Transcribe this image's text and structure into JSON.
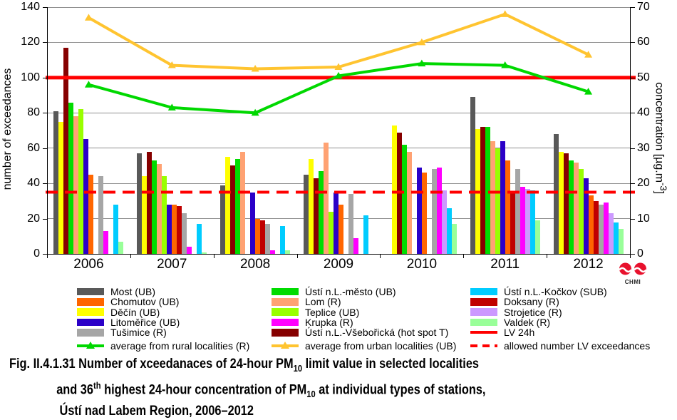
{
  "chart_data": {
    "type": "bar+line",
    "categories": [
      "2006",
      "2007",
      "2008",
      "2009",
      "2010",
      "2011",
      "2012"
    ],
    "bar_series": [
      {
        "name": "Most (UB)",
        "color": "#595959",
        "values": [
          81,
          57,
          39,
          45,
          null,
          89,
          68
        ]
      },
      {
        "name": "Děčín (UB)",
        "color": "#FFFF00",
        "values": [
          75,
          44,
          55,
          54,
          73,
          71,
          58
        ]
      },
      {
        "name": "Ústí n.L.-Všebořická (hot spot T)",
        "color": "#860000",
        "values": [
          117,
          58,
          50,
          43,
          69,
          72,
          57
        ]
      },
      {
        "name": "Ústí n.L.-město (UB)",
        "color": "#00DC00",
        "values": [
          86,
          53,
          54,
          47,
          62,
          72,
          53
        ]
      },
      {
        "name": "Lom (R)",
        "color": "#FFA273",
        "values": [
          78,
          51,
          58,
          63,
          58,
          64,
          52
        ]
      },
      {
        "name": "Teplice (UB)",
        "color": "#99FF00",
        "values": [
          82,
          44,
          null,
          24,
          null,
          60,
          48
        ]
      },
      {
        "name": "Litoměřice (UB)",
        "color": "#2B00C8",
        "values": [
          65,
          28,
          35,
          35,
          49,
          64,
          43
        ]
      },
      {
        "name": "Chomutov (UB)",
        "color": "#FF6600",
        "values": [
          45,
          28,
          20,
          28,
          46,
          53,
          33
        ]
      },
      {
        "name": "Doksany (R)",
        "color": "#C00000",
        "values": [
          null,
          27,
          19,
          null,
          null,
          35,
          30
        ]
      },
      {
        "name": "Tušimice (R)",
        "color": "#A6A6A6",
        "values": [
          44,
          23,
          17,
          34,
          48,
          48,
          28
        ]
      },
      {
        "name": "Krupka (R)",
        "color": "#FF00FF",
        "values": [
          13,
          4,
          2,
          9,
          49,
          38,
          29
        ]
      },
      {
        "name": "Strojetice (R)",
        "color": "#CC99FF",
        "values": [
          null,
          null,
          null,
          null,
          36,
          37,
          23
        ]
      },
      {
        "name": "Ústí n.L.-Kočkov (SUB)",
        "color": "#00CCFF",
        "values": [
          28,
          17,
          16,
          22,
          26,
          36,
          18
        ]
      },
      {
        "name": "Valdek (R)",
        "color": "#99FF99",
        "values": [
          7,
          1,
          2,
          null,
          17,
          19,
          14
        ]
      }
    ],
    "line_series": [
      {
        "name": "average from rural localities (R)",
        "color": "#00D800",
        "values": [
          96,
          83,
          80,
          101,
          108,
          107,
          92
        ]
      },
      {
        "name": "average from urban localities (UB)",
        "color": "#FFC430",
        "values": [
          134,
          107,
          105,
          106,
          120,
          136,
          113
        ]
      }
    ],
    "ref_lines": [
      {
        "name": "LV 24h",
        "value": 100,
        "style": "solid",
        "color": "#FF0000"
      },
      {
        "name": "allowed number LV exceedances",
        "value": 35,
        "style": "dashed",
        "color": "#FF0000"
      }
    ],
    "y_left": {
      "label": "number of exceedances",
      "min": 0,
      "max": 140,
      "ticks": [
        0,
        20,
        40,
        60,
        80,
        100,
        120,
        140
      ]
    },
    "y_right": {
      "label_pre": "concentration [µg.m",
      "label_sup": "-3",
      "label_post": "]",
      "min": 0,
      "max": 70,
      "ticks": [
        0,
        10,
        20,
        30,
        40,
        50,
        60,
        70
      ]
    },
    "grid": true,
    "legend_position": "bottom"
  },
  "legend": {
    "columns": [
      {
        "items": [
          {
            "type": "box",
            "color": "#595959",
            "label": "Most (UB)"
          },
          {
            "type": "box",
            "color": "#FF6600",
            "label": "Chomutov (UB)"
          },
          {
            "type": "box",
            "color": "#FFFF00",
            "label": "Děčín (UB)"
          },
          {
            "type": "box",
            "color": "#2B00C8",
            "label": "Litoměřice (UB)"
          },
          {
            "type": "box",
            "color": "#A6A6A6",
            "label": "Tušimice (R)"
          },
          {
            "type": "line-marker",
            "color": "#00D800",
            "label": "average from rural localities (R)"
          }
        ]
      },
      {
        "items": [
          {
            "type": "box",
            "color": "#00DC00",
            "label": "Ústí n.L.-město (UB)"
          },
          {
            "type": "box",
            "color": "#FFA273",
            "label": "Lom (R)"
          },
          {
            "type": "box",
            "color": "#99FF00",
            "label": "Teplice (UB)"
          },
          {
            "type": "box",
            "color": "#FF00FF",
            "label": "Krupka (R)"
          },
          {
            "type": "box",
            "color": "#860000",
            "label": "Ústí n.L.-Všebořická (hot spot T)"
          },
          {
            "type": "line-marker",
            "color": "#FFC430",
            "label": "average from urban localities  (UB)"
          }
        ]
      },
      {
        "items": [
          {
            "type": "box",
            "color": "#00CCFF",
            "label": "Ústí n.L.-Kočkov (SUB)"
          },
          {
            "type": "box",
            "color": "#C00000",
            "label": "Doksany (R)"
          },
          {
            "type": "box",
            "color": "#CC99FF",
            "label": "Strojetice (R)"
          },
          {
            "type": "box",
            "color": "#99FF99",
            "label": "Valdek (R)"
          },
          {
            "type": "line",
            "color": "#FF0000",
            "label": "LV 24h"
          },
          {
            "type": "line-dashed",
            "color": "#FF0000",
            "label": "allowed number LV exceedances"
          }
        ]
      }
    ]
  },
  "caption": {
    "fig_label": "Fig. II.4.1.31",
    "line1_pre": " Number of xceedanaces of 24-hour PM",
    "pm_sub": "10",
    "line1_post": " limit value in selected localities",
    "line2_pre": "and 36",
    "th_sup": "th",
    "line2_mid": " highest 24-hour concentration of PM",
    "line2_post": " at individual types of stations,",
    "line3": "Ústí nad Labem Region, 2006–2012"
  },
  "logo": {
    "text": "CHMI",
    "color": "#E8112D"
  }
}
